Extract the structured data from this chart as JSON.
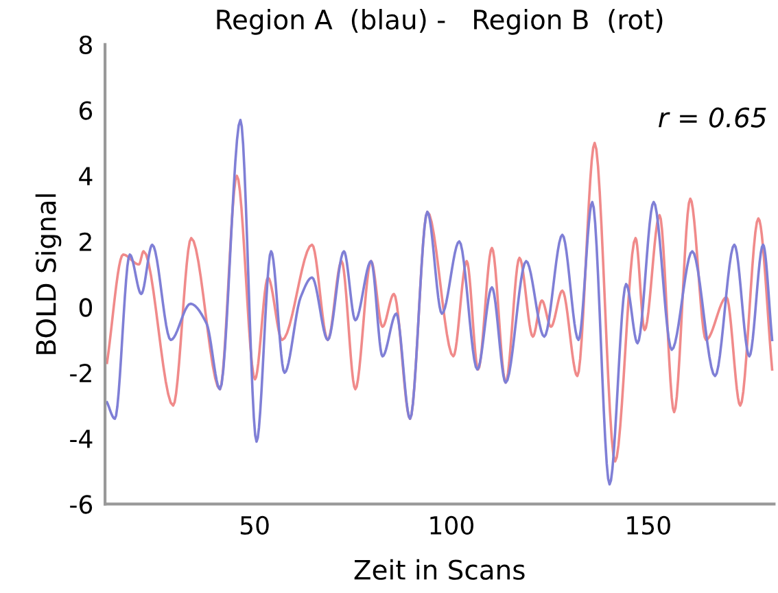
{
  "chart_data": {
    "type": "line",
    "title": "Region A  (blau) -   Region B  (rot)",
    "xlabel": "Zeit in Scans",
    "ylabel": "BOLD Signal",
    "annotations": [
      "r = 0.65"
    ],
    "xlim": [
      12,
      182
    ],
    "xticks": [
      50,
      100,
      150
    ],
    "ylim": [
      -6,
      8
    ],
    "yticks": [
      -6,
      -4,
      -2,
      0,
      2,
      4,
      6,
      8
    ],
    "grid": false,
    "legend": false,
    "marker": "none",
    "line_style": "solid",
    "series": [
      {
        "color": "#f08a8a",
        "x": [
          12.5,
          16.6,
          20.6,
          21.8,
          29.3,
          33.9,
          41.2,
          45.5,
          50.1,
          53.4,
          57.0,
          64.6,
          68.6,
          72.1,
          75.6,
          79.6,
          82.5,
          85.4,
          89.5,
          93.9,
          100.5,
          103.9,
          106.8,
          110.3,
          113.8,
          117.3,
          120.7,
          123.0,
          125.3,
          128.2,
          132.0,
          136.4,
          141.6,
          146.8,
          149.1,
          152.9,
          156.6,
          160.7,
          164.7,
          169.9,
          173.4,
          178.0,
          181.5
        ],
        "values": [
          -1.7,
          1.6,
          1.3,
          1.7,
          -3.0,
          2.1,
          -2.5,
          4.0,
          -2.2,
          0.9,
          -1.0,
          1.9,
          -1.0,
          1.4,
          -2.5,
          1.4,
          -0.6,
          0.4,
          -3.4,
          2.9,
          -1.5,
          1.4,
          -1.9,
          1.8,
          -2.3,
          1.5,
          -0.9,
          0.2,
          -0.6,
          0.5,
          -2.1,
          5.0,
          -4.7,
          2.1,
          -0.7,
          2.8,
          -3.2,
          3.3,
          -1.0,
          0.3,
          -3.0,
          2.7,
          -1.9
        ]
      },
      {
        "color": "#7f7fd6",
        "x": [
          12.5,
          14.5,
          18.3,
          21.2,
          24.0,
          28.7,
          33.7,
          37.8,
          41.2,
          46.4,
          50.5,
          54.2,
          57.6,
          61.7,
          64.6,
          68.6,
          72.7,
          75.6,
          79.6,
          82.5,
          86.0,
          89.5,
          93.9,
          97.6,
          102.0,
          106.6,
          110.3,
          113.8,
          119.0,
          123.6,
          128.2,
          132.3,
          135.8,
          140.2,
          144.4,
          147.3,
          151.4,
          156.0,
          161.2,
          167.0,
          171.9,
          175.7,
          179.2,
          181.5
        ],
        "values": [
          -2.9,
          -3.4,
          1.6,
          0.4,
          1.9,
          -1.0,
          0.1,
          -0.5,
          -2.5,
          5.7,
          -4.1,
          1.7,
          -2.0,
          0.3,
          0.9,
          -1.0,
          1.7,
          -0.4,
          1.4,
          -1.5,
          -0.2,
          -3.4,
          2.9,
          -0.2,
          2.0,
          -1.9,
          0.6,
          -2.3,
          1.4,
          -0.9,
          2.2,
          -1.0,
          3.2,
          -5.4,
          0.7,
          -1.1,
          3.2,
          -1.3,
          1.7,
          -2.1,
          1.9,
          -1.5,
          1.9,
          -1.0
        ]
      }
    ]
  }
}
